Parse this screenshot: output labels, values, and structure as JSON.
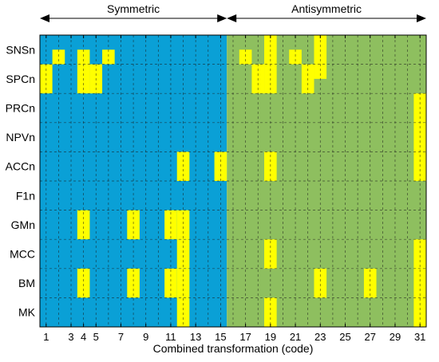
{
  "chart_data": {
    "type": "heatmap",
    "title": "",
    "xlabel": "Combined transformation (code)",
    "ylabel": "",
    "x_range": [
      1,
      31
    ],
    "x_tick_labels": [
      "1",
      "3",
      "4",
      "5",
      "7",
      "9",
      "11",
      "13",
      "15",
      "17",
      "19",
      "21",
      "23",
      "25",
      "27",
      "29",
      "31"
    ],
    "rows": [
      "SNSn",
      "SPCn",
      "PRCn",
      "NPVn",
      "ACCn",
      "F1n",
      "GMn",
      "MCC",
      "BM",
      "MK"
    ],
    "regions": [
      {
        "label": "Symmetric",
        "from": 1,
        "to": 15,
        "color": "#0aa0d6"
      },
      {
        "label": "Antisymmetric",
        "from": 16,
        "to": 31,
        "color": "#8ebf5f"
      }
    ],
    "highlight_color": "#ffff00",
    "highlights": {
      "SNSn": [
        [
          2,
          0.5,
          1
        ],
        [
          4,
          0.5,
          1
        ],
        [
          6,
          0.5,
          1
        ],
        [
          17,
          0.5,
          1
        ],
        [
          19,
          0,
          1
        ],
        [
          21,
          0.5,
          1
        ],
        [
          23,
          0,
          1
        ]
      ],
      "SPCn": [
        [
          1,
          0,
          1
        ],
        [
          4,
          0,
          1
        ],
        [
          5,
          0,
          1
        ],
        [
          18,
          0,
          1
        ],
        [
          19,
          0,
          1
        ],
        [
          22,
          0,
          1
        ],
        [
          23,
          0,
          0.5
        ]
      ],
      "PRCn": [
        [
          31,
          0,
          1
        ]
      ],
      "NPVn": [
        [
          31,
          0,
          1
        ]
      ],
      "ACCn": [
        [
          12,
          0,
          1
        ],
        [
          15,
          0,
          1
        ],
        [
          19,
          0,
          1
        ],
        [
          31,
          0,
          1
        ]
      ],
      "F1n": [],
      "GMn": [
        [
          4,
          0,
          1
        ],
        [
          8,
          0,
          1
        ],
        [
          11,
          0,
          1
        ],
        [
          12,
          0,
          1
        ]
      ],
      "MCC": [
        [
          12,
          0,
          1
        ],
        [
          19,
          0,
          1
        ],
        [
          31,
          0,
          1
        ]
      ],
      "BM": [
        [
          4,
          0,
          1
        ],
        [
          8,
          0,
          1
        ],
        [
          11,
          0,
          1
        ],
        [
          12,
          0,
          1
        ],
        [
          23,
          0,
          1
        ],
        [
          27,
          0,
          1
        ],
        [
          31,
          0,
          1
        ]
      ],
      "MK": [
        [
          12,
          0,
          1
        ],
        [
          19,
          0,
          1
        ],
        [
          31,
          0,
          1
        ]
      ]
    },
    "grid": true,
    "legend": "none"
  }
}
